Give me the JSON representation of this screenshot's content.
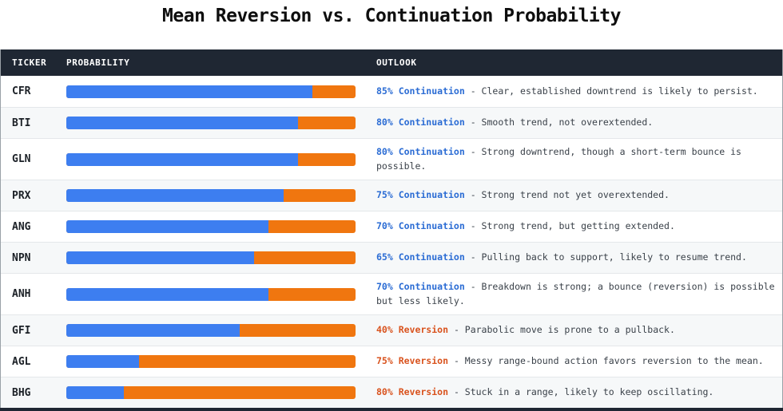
{
  "title": "Mean Reversion vs. Continuation Probability",
  "colors": {
    "header_bg": "#1f2733",
    "bar_continuation_blue": "#3d7ef0",
    "bar_reversion_orange": "#f0760f",
    "label_continuation_blue": "#2b6cd4",
    "label_reversion_orange": "#d9531e",
    "row_alt_bg": "#f6f8f9"
  },
  "table": {
    "columns": [
      "TICKER",
      "PROBABILITY",
      "OUTLOOK"
    ],
    "separator": " - ",
    "rows": [
      {
        "ticker": "CFR",
        "continuation": 85,
        "outlook_label": "85% Continuation",
        "outlook_type": "continuation",
        "outlook_text": "Clear, established downtrend is likely to persist.",
        "tall": false
      },
      {
        "ticker": "BTI",
        "continuation": 80,
        "outlook_label": "80% Continuation",
        "outlook_type": "continuation",
        "outlook_text": "Smooth trend, not overextended.",
        "tall": false
      },
      {
        "ticker": "GLN",
        "continuation": 80,
        "outlook_label": "80% Continuation",
        "outlook_type": "continuation",
        "outlook_text": "Strong downtrend, though a short-term bounce is possible.",
        "tall": true
      },
      {
        "ticker": "PRX",
        "continuation": 75,
        "outlook_label": "75% Continuation",
        "outlook_type": "continuation",
        "outlook_text": "Strong trend not yet overextended.",
        "tall": false
      },
      {
        "ticker": "ANG",
        "continuation": 70,
        "outlook_label": "70% Continuation",
        "outlook_type": "continuation",
        "outlook_text": "Strong trend, but getting extended.",
        "tall": false
      },
      {
        "ticker": "NPN",
        "continuation": 65,
        "outlook_label": "65% Continuation",
        "outlook_type": "continuation",
        "outlook_text": "Pulling back to support, likely to resume trend.",
        "tall": false
      },
      {
        "ticker": "ANH",
        "continuation": 70,
        "outlook_label": "70% Continuation",
        "outlook_type": "continuation",
        "outlook_text": "Breakdown is strong; a bounce (reversion) is possible but less likely.",
        "tall": true
      },
      {
        "ticker": "GFI",
        "continuation": 60,
        "outlook_label": "40% Reversion",
        "outlook_type": "reversion",
        "outlook_text": "Parabolic move is prone to a pullback.",
        "tall": false
      },
      {
        "ticker": "AGL",
        "continuation": 25,
        "outlook_label": "75% Reversion",
        "outlook_type": "reversion",
        "outlook_text": "Messy range-bound action favors reversion to the mean.",
        "tall": false
      },
      {
        "ticker": "BHG",
        "continuation": 20,
        "outlook_label": "80% Reversion",
        "outlook_type": "reversion",
        "outlook_text": "Stuck in a range, likely to keep oscillating.",
        "tall": false
      }
    ]
  },
  "chart_data": {
    "type": "bar",
    "orientation": "horizontal",
    "stacked": true,
    "title": "Mean Reversion vs. Continuation Probability",
    "categories": [
      "CFR",
      "BTI",
      "GLN",
      "PRX",
      "ANG",
      "NPN",
      "ANH",
      "GFI",
      "AGL",
      "BHG"
    ],
    "series": [
      {
        "name": "Continuation",
        "color": "#3d7ef0",
        "values": [
          85,
          80,
          80,
          75,
          70,
          65,
          70,
          60,
          25,
          20
        ]
      },
      {
        "name": "Reversion",
        "color": "#f0760f",
        "values": [
          15,
          20,
          20,
          25,
          30,
          35,
          30,
          40,
          75,
          80
        ]
      }
    ],
    "xlim": [
      0,
      100
    ],
    "grid": false,
    "legend": false,
    "annotations": [
      "85% Continuation - Clear, established downtrend is likely to persist.",
      "80% Continuation - Smooth trend, not overextended.",
      "80% Continuation - Strong downtrend, though a short-term bounce is possible.",
      "75% Continuation - Strong trend not yet overextended.",
      "70% Continuation - Strong trend, but getting extended.",
      "65% Continuation - Pulling back to support, likely to resume trend.",
      "70% Continuation - Breakdown is strong; a bounce (reversion) is possible but less likely.",
      "40% Reversion - Parabolic move is prone to a pullback.",
      "75% Reversion - Messy range-bound action favors reversion to the mean.",
      "80% Reversion - Stuck in a range, likely to keep oscillating."
    ]
  }
}
